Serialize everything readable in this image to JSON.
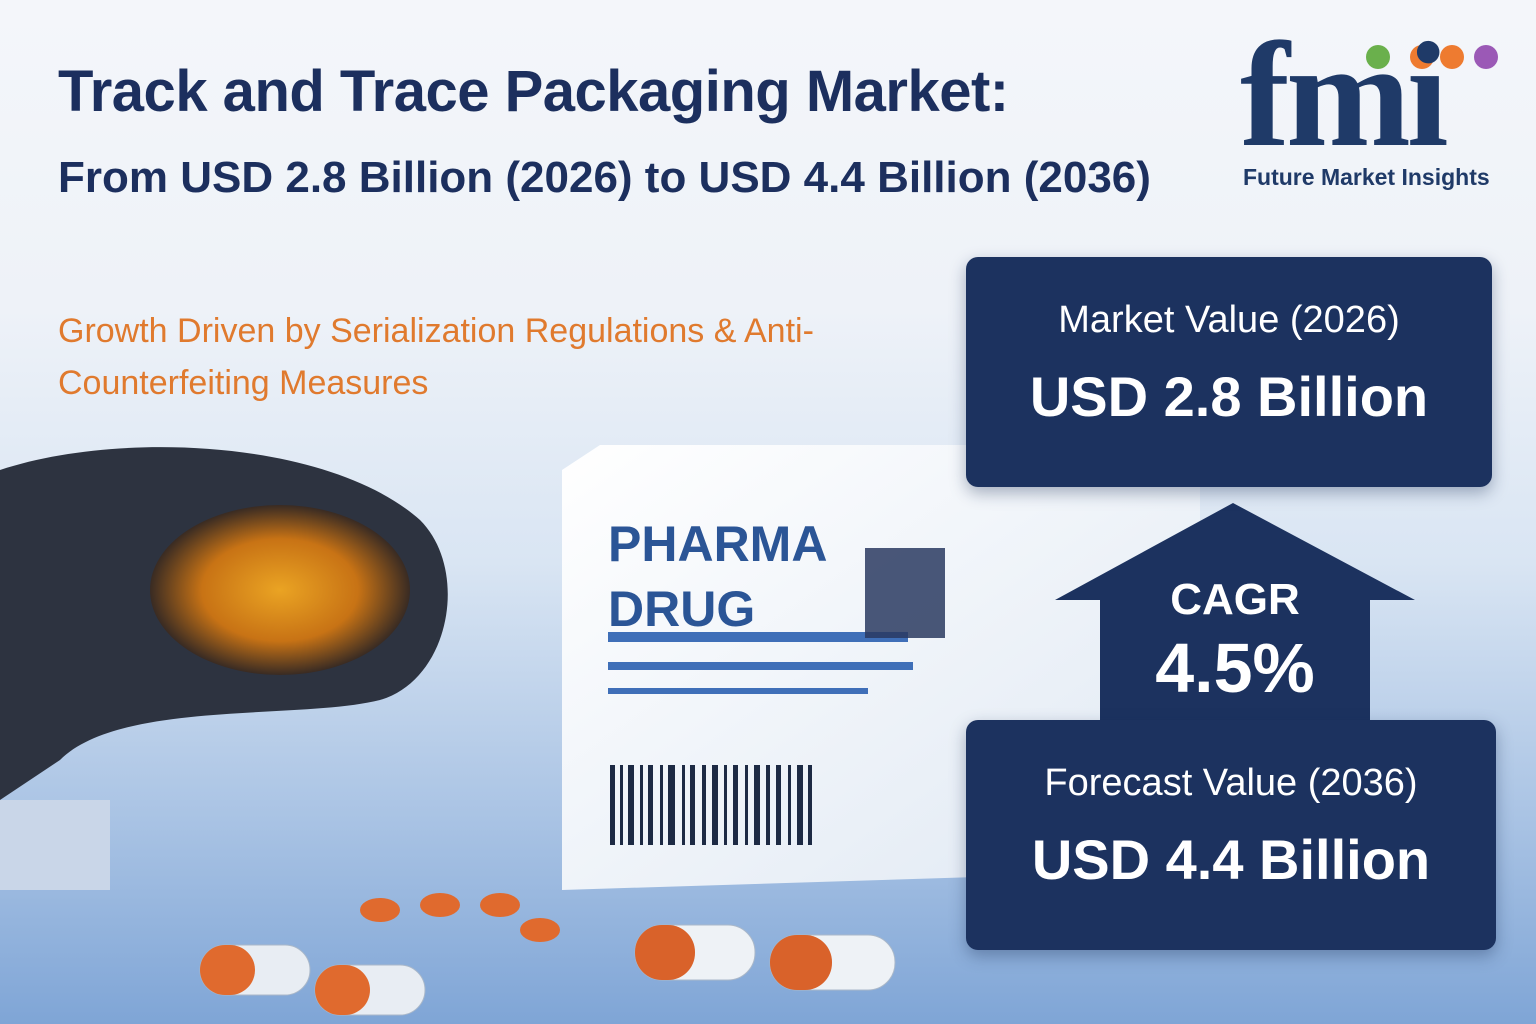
{
  "header": {
    "title": "Track and Trace Packaging Market:",
    "subtitle": "From USD 2.8 Billion (2026) to USD 4.4 Billion (2036)",
    "tagline": "Growth Driven by Serialization Regulations & Anti-Counterfeiting Measures"
  },
  "logo": {
    "mark": "fmi",
    "name": "Future Market Insights"
  },
  "market_value": {
    "label": "Market Value (2026)",
    "value": "USD 2.8 Billion"
  },
  "cagr": {
    "label": "CAGR",
    "value": "4.5%"
  },
  "forecast_value": {
    "label": "Forecast Value (2036)",
    "value": "USD 4.4 Billion"
  },
  "package": {
    "line1": "PHARMA",
    "line2": "DRUG"
  }
}
